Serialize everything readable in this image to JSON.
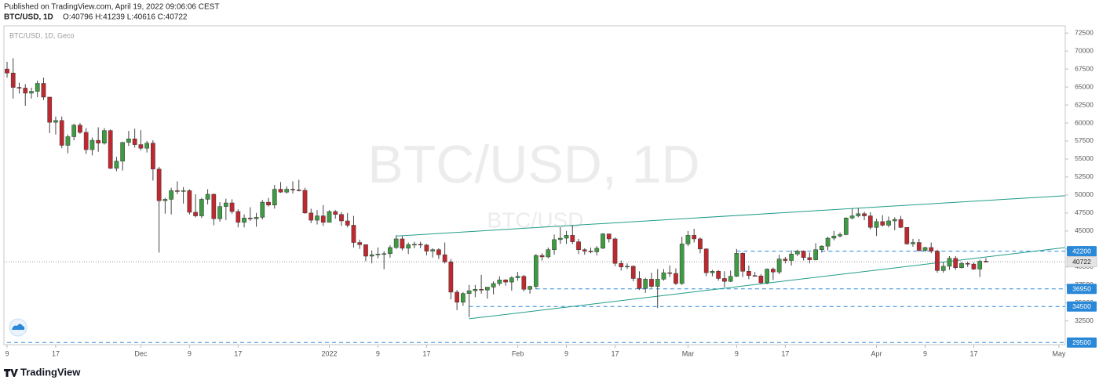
{
  "published": "Published on TradingView.com, April 19, 2022 09:06:06 CEST",
  "brand": "TradingView",
  "chart_data": {
    "type": "candlestick",
    "symbol": "BTC/USD, 1D",
    "ohlc": "O:40796 H:41239 L:40616 C:40722",
    "chart_label": "BTC/USD, 1D, Geco",
    "watermark": "BTC/USD, 1D",
    "watermark_sub": "BTC/USD",
    "up_color": "#3f9b43",
    "down_color": "#c0282f",
    "wick_color": "#444444",
    "grid": false,
    "categories": [
      "9",
      null,
      null,
      null,
      null,
      null,
      null,
      null,
      "17",
      null,
      null,
      null,
      null,
      null,
      null,
      null,
      null,
      null,
      null,
      null,
      null,
      null,
      "Dec",
      null,
      null,
      null,
      null,
      null,
      null,
      null,
      "9",
      null,
      null,
      null,
      null,
      null,
      null,
      null,
      "17",
      null,
      null,
      null,
      null,
      null,
      null,
      null,
      null,
      null,
      null,
      null,
      null,
      null,
      null,
      "2022",
      null,
      null,
      null,
      null,
      null,
      null,
      null,
      "9",
      null,
      null,
      null,
      null,
      null,
      null,
      null,
      "17",
      null,
      null,
      null,
      null,
      null,
      null,
      null,
      null,
      null,
      null,
      null,
      null,
      null,
      null,
      "Feb",
      null,
      null,
      null,
      null,
      null,
      null,
      null,
      "9",
      null,
      null,
      null,
      null,
      null,
      null,
      null,
      "17",
      null,
      null,
      null,
      null,
      null,
      null,
      null,
      null,
      null,
      null,
      null,
      "Mar",
      null,
      null,
      null,
      null,
      null,
      null,
      null,
      "9",
      null,
      null,
      null,
      null,
      null,
      null,
      null,
      "17",
      null,
      null,
      null,
      null,
      null,
      null,
      null,
      null,
      null,
      null,
      null,
      null,
      null,
      null,
      "Apr",
      null,
      null,
      null,
      null,
      null,
      null,
      null,
      "9",
      null,
      null,
      null,
      null,
      null,
      null,
      null,
      "17",
      null,
      null,
      null,
      null,
      null,
      null,
      null,
      null,
      null,
      null,
      null,
      null,
      null,
      "May"
    ],
    "open": [
      67500,
      66950,
      64950,
      64850,
      64150,
      64400,
      65500,
      63600,
      60100,
      60350,
      56900,
      58100,
      59700,
      58700,
      56300,
      57600,
      57200,
      58950,
      53700,
      54700,
      57300,
      57800,
      57000,
      56500,
      57200,
      53600,
      49200,
      49400,
      50600,
      50500,
      50600,
      47600,
      47100,
      49400,
      50100,
      46700,
      48400,
      48900,
      47700,
      46200,
      46800,
      46700,
      46900,
      49000,
      48600,
      50800,
      50400,
      50800,
      50700,
      50650,
      47500,
      46500,
      47100,
      46200,
      47700,
      47300,
      46400,
      45800,
      43400,
      43100,
      41500,
      41700,
      41800,
      41850,
      42700,
      43900,
      42600,
      43100,
      43150,
      43050,
      42200,
      42400,
      41700,
      40700,
      36500,
      35100,
      36300,
      36700,
      36900,
      36800,
      37200,
      37700,
      38200,
      37900,
      38500,
      38700,
      36900,
      37300,
      41600,
      41400,
      42400,
      43800,
      44000,
      44400,
      43500,
      42400,
      42200,
      42100,
      42600,
      44600,
      43900,
      40500,
      40000,
      40100,
      38400,
      37000,
      38300,
      37300,
      38300,
      39200,
      39100,
      37700,
      43200,
      44400,
      43900,
      42500,
      39200,
      39400,
      38400,
      38000,
      38700,
      41900,
      39400,
      38800,
      38750,
      37800,
      39700,
      39300,
      41100,
      40900,
      41800,
      42200,
      41300,
      41000,
      42400,
      42900,
      44000,
      44300,
      44500,
      46800,
      47100,
      47400,
      47100,
      45500,
      46300,
      45800,
      46400,
      46600,
      45500,
      43200,
      43400,
      42300,
      42700,
      42200,
      39500,
      40100,
      41200,
      39900,
      40500,
      40400,
      39700,
      40796,
      null,
      null,
      null,
      null,
      null,
      null,
      null,
      null,
      null,
      null,
      null,
      null
    ],
    "high": [
      68500,
      69000,
      65600,
      65400,
      64900,
      65900,
      66300,
      63600,
      60900,
      60900,
      58400,
      59900,
      60000,
      59300,
      58000,
      59400,
      59300,
      59100,
      55300,
      57400,
      58900,
      59200,
      59000,
      57500,
      57600,
      53900,
      49600,
      51000,
      51900,
      51100,
      50800,
      50100,
      49600,
      50800,
      50200,
      49000,
      49500,
      49400,
      48000,
      47300,
      48300,
      47500,
      49300,
      49600,
      51400,
      51800,
      51200,
      51900,
      52100,
      51000,
      48100,
      47900,
      48600,
      47900,
      47900,
      47600,
      47500,
      47100,
      43800,
      43100,
      42300,
      42700,
      42200,
      43000,
      44400,
      44300,
      43400,
      43500,
      43500,
      43200,
      42600,
      42600,
      43400,
      41100,
      36800,
      36500,
      37500,
      37500,
      38900,
      37200,
      38000,
      38700,
      38300,
      38700,
      39300,
      38900,
      37400,
      41800,
      41900,
      42700,
      44500,
      45500,
      45000,
      45800,
      43900,
      42600,
      42700,
      42900,
      44700,
      44600,
      44100,
      40900,
      40500,
      40200,
      39400,
      38500,
      39200,
      39700,
      39700,
      40200,
      39800,
      44200,
      45000,
      45300,
      44100,
      42600,
      39600,
      39600,
      39400,
      39500,
      42500,
      42000,
      40200,
      39300,
      39000,
      39800,
      39900,
      41700,
      41400,
      42300,
      42400,
      42300,
      42000,
      43300,
      43000,
      44200,
      45000,
      44800,
      46900,
      48100,
      48200,
      47700,
      47600,
      46700,
      47200,
      47000,
      46900,
      47100,
      45500,
      43900,
      43900,
      42800,
      43400,
      42400,
      40700,
      41500,
      41500,
      40700,
      40700,
      40600,
      41000,
      41239,
      null,
      null,
      null,
      null,
      null,
      null,
      null,
      null,
      null,
      null,
      null,
      null
    ],
    "low": [
      66300,
      63400,
      64100,
      62400,
      63400,
      63600,
      63200,
      58600,
      58400,
      56500,
      55800,
      57600,
      58500,
      55700,
      55500,
      56000,
      57000,
      53600,
      53300,
      53400,
      56800,
      56600,
      56200,
      55900,
      52000,
      42000,
      47400,
      47300,
      50100,
      48800,
      47300,
      46900,
      46800,
      48700,
      45800,
      46300,
      46500,
      47400,
      45500,
      45500,
      46400,
      45600,
      46600,
      48400,
      48100,
      50300,
      50200,
      50200,
      50500,
      47400,
      46100,
      45900,
      45700,
      46200,
      46700,
      45700,
      45500,
      42700,
      42500,
      40800,
      40500,
      41200,
      39700,
      41300,
      42500,
      42300,
      41800,
      42600,
      42600,
      41600,
      41300,
      41100,
      40500,
      35500,
      34000,
      34600,
      33000,
      35800,
      36300,
      35600,
      36200,
      37400,
      37400,
      36700,
      38100,
      36600,
      36300,
      36900,
      40900,
      41200,
      41700,
      43200,
      43200,
      43200,
      41800,
      41700,
      41900,
      41600,
      42500,
      43400,
      40100,
      39500,
      39700,
      38000,
      36800,
      36400,
      37100,
      34300,
      38100,
      38600,
      37500,
      37500,
      42900,
      43400,
      41900,
      38700,
      38700,
      38100,
      37200,
      37900,
      38600,
      38600,
      38300,
      38700,
      37600,
      37600,
      38200,
      39000,
      40500,
      40200,
      41500,
      40900,
      40500,
      40900,
      42000,
      42300,
      43700,
      44100,
      44400,
      46600,
      46900,
      46500,
      45200,
      44300,
      45600,
      45500,
      45100,
      45400,
      43100,
      42800,
      42100,
      42100,
      41900,
      39200,
      39200,
      39600,
      39600,
      39800,
      40000,
      39600,
      38600,
      40616,
      null,
      null,
      null,
      null,
      null,
      null,
      null,
      null,
      null,
      null,
      null,
      null
    ],
    "close": [
      66950,
      64950,
      64850,
      64150,
      64400,
      65500,
      63600,
      60100,
      60350,
      56900,
      58100,
      59700,
      58700,
      56300,
      57600,
      57200,
      58950,
      53700,
      54700,
      57300,
      57800,
      57000,
      56500,
      57200,
      53600,
      49200,
      49400,
      50600,
      50500,
      50600,
      47600,
      47100,
      49400,
      50100,
      46700,
      48400,
      48900,
      47700,
      46200,
      46800,
      46700,
      46900,
      49000,
      48600,
      50800,
      50400,
      50800,
      50700,
      50650,
      47500,
      46500,
      47100,
      46200,
      47700,
      47300,
      46400,
      45800,
      43400,
      43100,
      41500,
      41700,
      41800,
      41850,
      42700,
      43900,
      42600,
      43100,
      43150,
      43050,
      42200,
      42400,
      41700,
      40700,
      36500,
      35100,
      36300,
      36700,
      36900,
      36800,
      37200,
      37700,
      38200,
      37900,
      38500,
      38700,
      36900,
      37300,
      41600,
      41400,
      42400,
      43800,
      44000,
      44400,
      43500,
      42400,
      42200,
      42100,
      42600,
      44600,
      43900,
      40500,
      40000,
      40100,
      38400,
      37000,
      38300,
      37300,
      38300,
      39200,
      39100,
      37700,
      43200,
      44400,
      43900,
      42500,
      39200,
      39400,
      38400,
      38000,
      38700,
      41900,
      39400,
      38800,
      38750,
      37800,
      39700,
      39300,
      41100,
      40900,
      41800,
      42200,
      41300,
      41000,
      42400,
      42900,
      44000,
      44300,
      44500,
      46800,
      47100,
      47400,
      47100,
      45500,
      46300,
      45800,
      46400,
      46600,
      45500,
      43200,
      43400,
      42300,
      42700,
      42200,
      39500,
      40100,
      41200,
      39900,
      40500,
      40400,
      39700,
      40796,
      40722,
      null,
      null,
      null,
      null,
      null,
      null,
      null,
      null,
      null,
      null,
      null,
      null
    ],
    "ylim": [
      29200,
      73500
    ],
    "yticks": [
      32500,
      35000,
      37500,
      40000,
      42500,
      45000,
      47500,
      50000,
      52500,
      55000,
      57500,
      60000,
      62500,
      65000,
      67500,
      70000,
      72500
    ],
    "trendlines": [
      {
        "x": [
          64,
          174
        ],
        "y": [
          44300,
          49900
        ],
        "color": "#1f9c8a"
      },
      {
        "x": [
          76,
          174
        ],
        "y": [
          32800,
          42700
        ],
        "color": "#1f9c8a"
      }
    ],
    "hlines": [
      {
        "value": 42200,
        "start": 120
      },
      {
        "value": 36950,
        "start": 87
      },
      {
        "value": 34500,
        "start": 76
      },
      {
        "value": 29500,
        "start": 0
      }
    ],
    "hline_color": "#2a88d8",
    "last_price": 40722
  }
}
